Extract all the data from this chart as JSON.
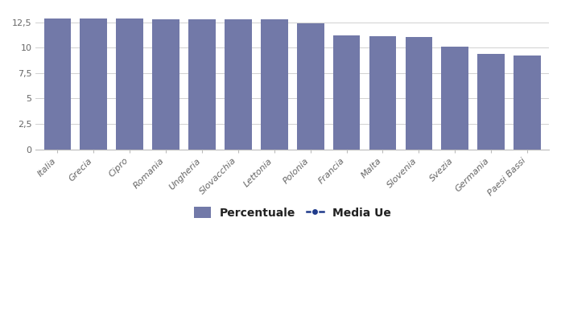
{
  "categories": [
    "Italia",
    "Grecia",
    "Cipro",
    "Romania",
    "Ungheria",
    "Slovacchia",
    "Lettonia",
    "Polonia",
    "Francia",
    "Malta",
    "Slovenia",
    "Svezia",
    "Germania",
    "Paesi Bassi"
  ],
  "values": [
    12.9,
    12.85,
    12.85,
    12.8,
    12.75,
    12.75,
    12.75,
    12.4,
    11.2,
    11.1,
    11.05,
    10.1,
    9.4,
    9.2
  ],
  "bar_color": "#7279a8",
  "media_ue_color": "#1f3a8a",
  "ylim": [
    0,
    13.5
  ],
  "yticks": [
    0,
    2.5,
    5,
    7.5,
    10,
    12.5
  ],
  "ytick_labels": [
    "0",
    "2,5",
    "5",
    "7,5",
    "10",
    "12,5"
  ],
  "background_color": "#ffffff",
  "grid_color": "#d0d0d0",
  "legend_percentuale": "Percentuale",
  "legend_media_ue": "Media Ue",
  "bar_width": 0.75,
  "tick_fontsize": 8,
  "legend_fontsize": 10
}
